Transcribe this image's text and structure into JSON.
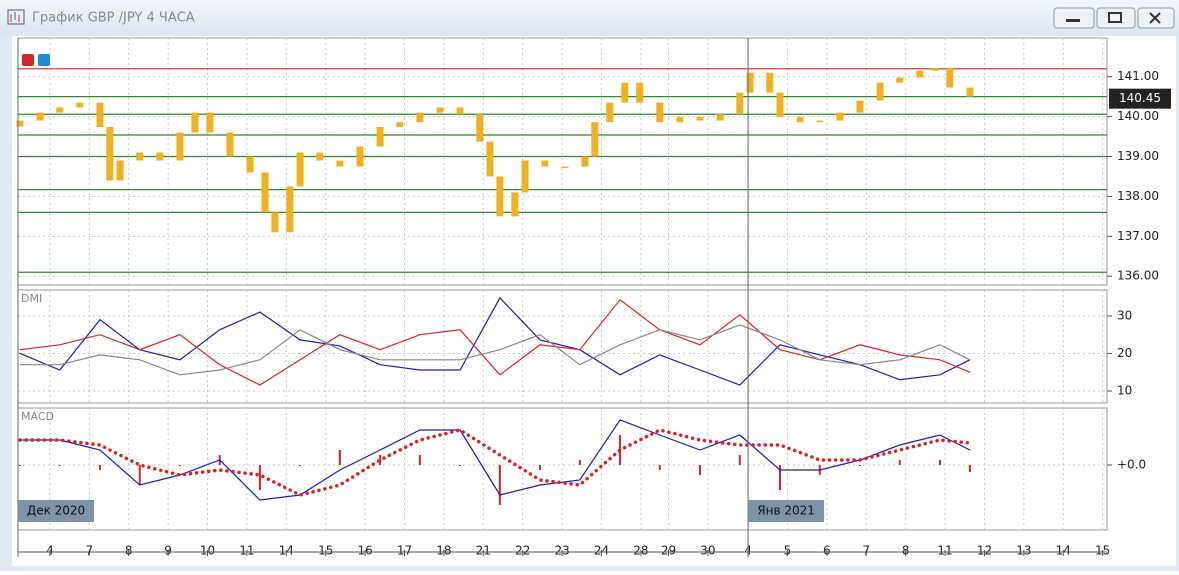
{
  "window_title": "График GBP /JPY  4 ЧАСА",
  "chart_data": [
    {
      "type": "candlestick",
      "color": "#f0b020",
      "grid": true,
      "x": [
        -0.76,
        -0.25,
        0.25,
        0.76,
        1.27,
        1.52,
        1.78,
        2.28,
        2.79,
        3.3,
        3.68,
        4.06,
        4.57,
        5.08,
        5.46,
        5.71,
        6.09,
        6.35,
        6.85,
        7.36,
        7.87,
        8.38,
        8.88,
        9.39,
        9.9,
        10.41,
        10.91,
        11.17,
        11.42,
        11.8,
        12.06,
        12.56,
        13.07,
        13.58,
        13.83,
        14.21,
        14.59,
        14.97,
        15.48,
        15.99,
        16.5,
        17.01,
        17.51,
        17.77,
        18.27,
        18.53,
        19.04,
        19.54,
        20.05,
        20.56,
        21.07,
        21.57,
        22.08,
        22.46,
        22.84,
        23.35
      ],
      "open": [
        139.75,
        139.9,
        140.1,
        140.23,
        140.35,
        139.74,
        138.4,
        138.9,
        139.1,
        138.9,
        139.6,
        140.1,
        139.6,
        139.0,
        138.6,
        137.6,
        137.1,
        138.25,
        139.1,
        138.9,
        138.75,
        139.25,
        139.74,
        139.86,
        140.1,
        140.23,
        140.06,
        139.37,
        138.5,
        137.5,
        138.1,
        138.9,
        138.75,
        138.75,
        139.0,
        139.86,
        140.35,
        140.85,
        140.35,
        139.86,
        139.99,
        139.9,
        140.06,
        140.6,
        141.1,
        140.6,
        139.99,
        139.86,
        139.9,
        140.1,
        140.4,
        140.85,
        140.98,
        141.15,
        141.22,
        140.73
      ],
      "close": [
        139.9,
        140.1,
        140.23,
        140.35,
        139.74,
        138.4,
        138.9,
        139.1,
        138.9,
        139.6,
        140.1,
        139.6,
        139.0,
        138.6,
        137.6,
        137.1,
        138.25,
        139.1,
        138.9,
        138.75,
        139.25,
        139.74,
        139.86,
        140.1,
        140.23,
        140.06,
        139.37,
        138.5,
        137.5,
        138.1,
        138.9,
        138.75,
        138.75,
        139.0,
        139.86,
        140.35,
        140.85,
        140.35,
        139.86,
        139.99,
        139.9,
        140.06,
        140.6,
        141.1,
        140.6,
        139.99,
        139.86,
        139.9,
        140.1,
        140.4,
        140.85,
        140.98,
        141.15,
        141.22,
        140.73,
        140.5
      ],
      "xlim": [
        -0.81,
        26.83
      ],
      "ylim": [
        135.78,
        141.97
      ],
      "yticks": [
        {
          "value": 136,
          "label": "136.00"
        },
        {
          "value": 137,
          "label": "137.00"
        },
        {
          "value": 138,
          "label": "138.00"
        },
        {
          "value": 139,
          "label": "139.00"
        },
        {
          "value": 140,
          "label": "140.00"
        },
        {
          "value": 141,
          "label": "141.00"
        }
      ],
      "levels": [
        {
          "value": 141.2,
          "color": "#d04040"
        },
        {
          "value": 140.5,
          "color": "#2e8b2e"
        },
        {
          "value": 140.06,
          "color": "#2e8b2e"
        },
        {
          "value": 139.54,
          "color": "#2e8b2e"
        },
        {
          "value": 139.0,
          "color": "#2e8b2e"
        },
        {
          "value": 138.17,
          "color": "#2e8b2e"
        },
        {
          "value": 137.6,
          "color": "#2e8b2e"
        },
        {
          "value": 136.1,
          "color": "#2e8b2e"
        }
      ],
      "current_price": 140.45
    },
    {
      "type": "line",
      "title": "DMI",
      "grid": true,
      "x": [
        -0.76,
        0.25,
        1.27,
        2.28,
        3.3,
        4.31,
        5.33,
        6.35,
        7.36,
        8.38,
        9.39,
        10.41,
        11.42,
        12.44,
        13.45,
        14.47,
        15.48,
        16.5,
        17.51,
        18.53,
        19.54,
        20.56,
        21.57,
        22.59,
        23.35
      ],
      "series": [
        {
          "color": "#1c1cb8",
          "style": "line",
          "values": [
            20,
            15.6,
            29,
            21,
            18.3,
            26.3,
            31,
            23.6,
            22,
            17,
            15.6,
            15.6,
            34.8,
            23.6,
            21,
            14.3,
            19.6,
            15.6,
            11.6,
            22.3,
            19.6,
            17,
            13,
            14.3,
            18.3
          ]
        },
        {
          "color": "#e02020",
          "style": "line",
          "values": [
            21,
            22.3,
            25,
            21,
            25,
            17,
            11.6,
            18.3,
            25,
            21,
            25,
            26.3,
            14.3,
            22.3,
            21,
            34.3,
            26.3,
            22.3,
            30.3,
            21,
            18.3,
            22.3,
            19.6,
            18.3,
            15
          ]
        },
        {
          "color": "#888888",
          "style": "line",
          "values": [
            17,
            17,
            19.6,
            18.3,
            14.3,
            15.6,
            18.3,
            26.3,
            21,
            18.3,
            18.3,
            18.3,
            21,
            25,
            17,
            22.3,
            26.3,
            23.6,
            27.6,
            23.6,
            18.3,
            17,
            18.3,
            22.3,
            18.3
          ]
        }
      ],
      "xlim": [
        -0.81,
        26.83
      ],
      "ylim": [
        6.8,
        36.9
      ],
      "yticks": [
        10,
        20,
        30
      ]
    },
    {
      "type": "line",
      "title": "MACD",
      "grid": true,
      "x": [
        -0.76,
        0.25,
        1.27,
        2.28,
        3.3,
        4.31,
        5.33,
        6.35,
        7.36,
        8.38,
        9.39,
        10.41,
        11.42,
        12.44,
        13.45,
        14.47,
        15.48,
        16.5,
        17.51,
        18.53,
        19.54,
        20.56,
        21.57,
        22.59,
        23.35
      ],
      "series": [
        {
          "color": "#e02020",
          "style": "bar",
          "values": [
            0,
            0,
            -0.05,
            -0.2,
            0,
            0.1,
            -0.25,
            0,
            0.15,
            0.1,
            0.1,
            0,
            -0.4,
            -0.05,
            0.05,
            0.3,
            -0.05,
            -0.1,
            0.1,
            -0.25,
            -0.1,
            0,
            0.05,
            0.05,
            -0.07
          ]
        },
        {
          "color": "#1c1cb8",
          "style": "line",
          "values": [
            0.25,
            0.25,
            0.15,
            -0.2,
            -0.1,
            0.05,
            -0.35,
            -0.3,
            -0.05,
            0.15,
            0.35,
            0.35,
            -0.3,
            -0.2,
            -0.15,
            0.45,
            0.3,
            0.15,
            0.3,
            -0.05,
            -0.05,
            0.05,
            0.2,
            0.3,
            0.15
          ]
        },
        {
          "color": "#e02020",
          "style": "dotted",
          "values": [
            0.25,
            0.25,
            0.2,
            0,
            -0.1,
            -0.05,
            -0.1,
            -0.3,
            -0.2,
            0.05,
            0.25,
            0.35,
            0.1,
            -0.15,
            -0.2,
            0.15,
            0.35,
            0.25,
            0.2,
            0.2,
            0.05,
            0.05,
            0.15,
            0.25,
            0.22
          ]
        }
      ],
      "xlim": [
        -0.81,
        26.83
      ],
      "ylim": [
        -0.65,
        0.57
      ],
      "yticks": [
        {
          "value": 0,
          "label": "+0.0"
        }
      ],
      "xticks": [
        {
          "value": 0,
          "label": "4"
        },
        {
          "value": 1,
          "label": "7"
        },
        {
          "value": 2,
          "label": "8"
        },
        {
          "value": 3,
          "label": "9"
        },
        {
          "value": 4,
          "label": "10"
        },
        {
          "value": 5,
          "label": "11"
        },
        {
          "value": 6,
          "label": "14"
        },
        {
          "value": 7,
          "label": "15"
        },
        {
          "value": 8,
          "label": "16"
        },
        {
          "value": 9,
          "label": "17"
        },
        {
          "value": 10,
          "label": "18"
        },
        {
          "value": 11,
          "label": "21"
        },
        {
          "value": 12,
          "label": "22"
        },
        {
          "value": 13,
          "label": "23"
        },
        {
          "value": 14,
          "label": "24"
        },
        {
          "value": 15,
          "label": "28"
        },
        {
          "value": 15.7,
          "label": "29"
        },
        {
          "value": 16.7,
          "label": "30"
        },
        {
          "value": 17.72,
          "label": "4"
        },
        {
          "value": 18.72,
          "label": "5"
        },
        {
          "value": 19.72,
          "label": "6"
        },
        {
          "value": 20.72,
          "label": "7"
        },
        {
          "value": 21.72,
          "label": "8"
        },
        {
          "value": 22.72,
          "label": "11"
        },
        {
          "value": 23.72,
          "label": "12"
        },
        {
          "value": 24.72,
          "label": "13"
        },
        {
          "value": 25.72,
          "label": "14"
        },
        {
          "value": 26.72,
          "label": "15"
        }
      ],
      "period_labels": [
        {
          "value": -0.81,
          "label": "Дек 2020"
        },
        {
          "value": 17.72,
          "label": "Янв 2021"
        }
      ]
    }
  ]
}
